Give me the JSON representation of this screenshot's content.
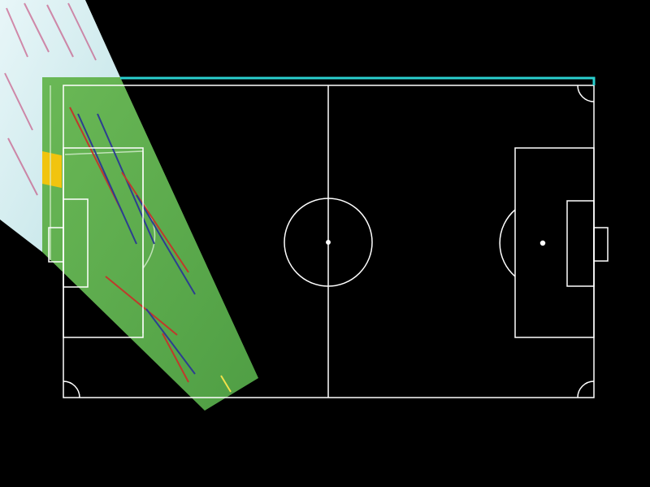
{
  "scene": {
    "background_color": "#000000",
    "line_color": "#ffffff",
    "highlight_line_color": "#2ad1cf",
    "projection_pitch_color": "#5fae4d",
    "projection_stand_color": "#d8eef0"
  },
  "elements": [
    "pitch-outline",
    "halfway-line",
    "center-circle",
    "center-spot",
    "left-penalty-area",
    "left-goal-area",
    "left-goal",
    "right-penalty-area",
    "right-goal-area",
    "right-goal",
    "right-penalty-spot",
    "right-penalty-arc",
    "corner-arcs",
    "camera-frame-projection",
    "top-touchline-highlight"
  ]
}
